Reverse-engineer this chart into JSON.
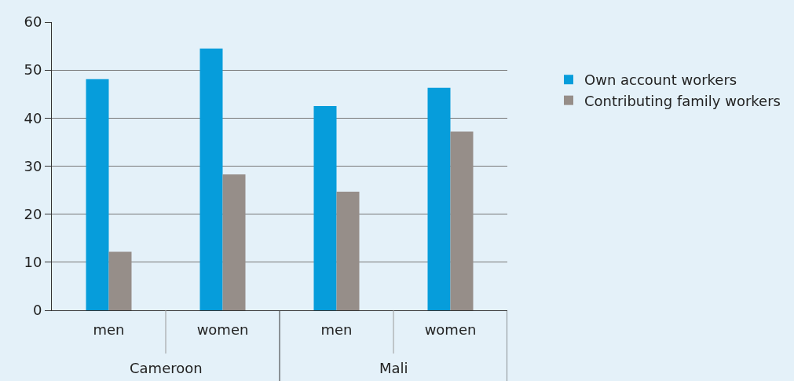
{
  "chart_data": {
    "type": "bar",
    "categories": [
      "men",
      "women",
      "men",
      "women"
    ],
    "series": [
      {
        "name": "Own account workers",
        "color": "#069ddb",
        "values": [
          48.1,
          54.5,
          42.5,
          46.3
        ]
      },
      {
        "name": "Contributing family workers",
        "color": "#968e89",
        "values": [
          12.2,
          28.3,
          24.7,
          37.2
        ]
      }
    ],
    "annotations": [
      "Cameroon",
      "Mali"
    ],
    "ylim": [
      0,
      60
    ],
    "yticks": [
      0,
      10,
      20,
      30,
      40,
      50,
      60
    ],
    "grid": "y",
    "legend": "right"
  }
}
